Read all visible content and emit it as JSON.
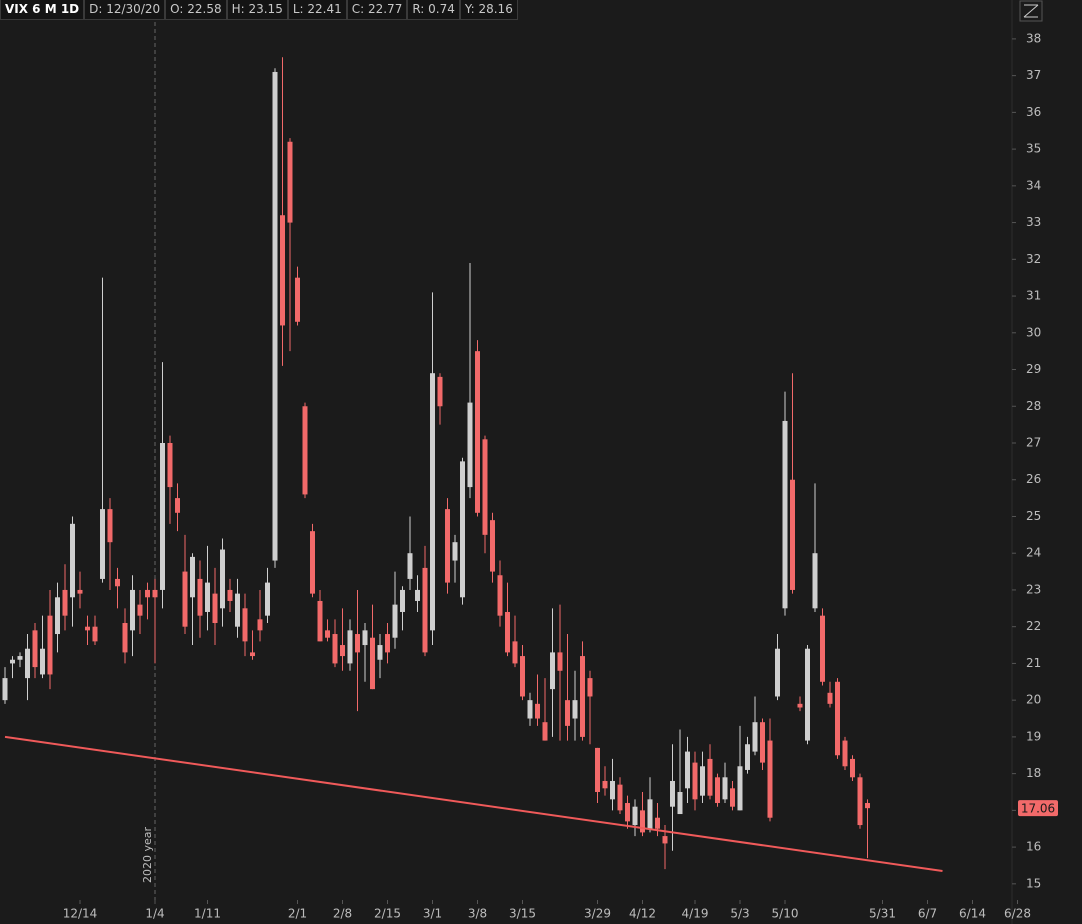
{
  "chart_data": {
    "type": "candlestick",
    "title": "VIX 6 M 1D",
    "readout": [
      "D: 12/30/20",
      "O: 22.58",
      "H: 23.15",
      "L: 22.41",
      "C: 22.77",
      "R: 0.74",
      "Y: 28.16"
    ],
    "annotation": "2020 year",
    "annotation_category": 20,
    "up_color": "#cfcfcf",
    "down_color": "#f26a6a",
    "grid": false,
    "ylim": [
      14.56,
      38.46
    ],
    "yticks": [
      15,
      16,
      17,
      18,
      19,
      20,
      21,
      22,
      23,
      24,
      25,
      26,
      27,
      28,
      29,
      30,
      31,
      32,
      33,
      34,
      35,
      36,
      37,
      38
    ],
    "categories": [
      null,
      null,
      null,
      null,
      null,
      null,
      null,
      null,
      null,
      null,
      "12/14",
      null,
      null,
      null,
      null,
      null,
      null,
      null,
      null,
      null,
      "1/4",
      null,
      null,
      null,
      null,
      null,
      null,
      "1/11",
      null,
      null,
      null,
      null,
      null,
      null,
      null,
      null,
      null,
      null,
      null,
      "2/1",
      null,
      null,
      null,
      null,
      null,
      "2/8",
      null,
      null,
      null,
      null,
      null,
      "2/15",
      null,
      null,
      null,
      null,
      null,
      "3/1",
      null,
      null,
      null,
      null,
      null,
      "3/8",
      null,
      null,
      null,
      null,
      null,
      "3/15",
      null,
      null,
      null,
      null,
      null,
      null,
      null,
      null,
      null,
      "3/29",
      null,
      null,
      null,
      null,
      null,
      "4/12",
      null,
      null,
      null,
      null,
      null,
      null,
      "4/19",
      null,
      null,
      null,
      null,
      null,
      "5/3",
      null,
      null,
      null,
      null,
      null,
      "5/10",
      null,
      null,
      null,
      null,
      null,
      null,
      null,
      null,
      null,
      null,
      null,
      null,
      "5/31",
      null,
      null,
      null,
      null,
      null,
      "6/7",
      null,
      null,
      null,
      null,
      null,
      "6/14",
      null,
      null,
      null,
      null,
      null,
      "6/28"
    ],
    "open": [
      20.0,
      21.0,
      21.1,
      20.6,
      21.9,
      20.7,
      22.3,
      21.8,
      23.0,
      22.8,
      23.0,
      22.0,
      22.0,
      23.3,
      25.2,
      23.3,
      22.1,
      21.9,
      22.6,
      23.0,
      23.0,
      23.0,
      27.0,
      25.5,
      23.5,
      22.8,
      23.3,
      22.4,
      22.9,
      22.5,
      23.0,
      22.0,
      22.5,
      21.3,
      22.2,
      22.3,
      23.8,
      33.2,
      35.2,
      31.5,
      28.0,
      24.6,
      22.7,
      21.9,
      21.8,
      21.5,
      21.0,
      21.8,
      21.5,
      21.7,
      21.1,
      21.8,
      21.7,
      22.4,
      23.3,
      22.7,
      23.6,
      21.9,
      28.8,
      25.2,
      23.8,
      22.8,
      25.8,
      29.5,
      27.1,
      24.9,
      23.4,
      22.4,
      21.6,
      21.2,
      19.5,
      19.9,
      19.4,
      20.3,
      21.3,
      20.0,
      19.5,
      21.2,
      20.6,
      18.7,
      17.8,
      17.3,
      17.7,
      17.2,
      16.6,
      17.0,
      16.5,
      16.8,
      16.3,
      17.1,
      16.9,
      17.6,
      18.3,
      17.4,
      18.4,
      17.9,
      17.3,
      17.6,
      17.0,
      18.1,
      18.6,
      19.4,
      18.9,
      20.1,
      22.5,
      26.0,
      19.9,
      18.9,
      22.5,
      22.3,
      20.2,
      20.5,
      18.9,
      18.4,
      17.9,
      17.2,
      null,
      null,
      null,
      null,
      null,
      null,
      null,
      null,
      null,
      null,
      null,
      null,
      null,
      null,
      null,
      null,
      null,
      null,
      null,
      null
    ],
    "high": [
      20.9,
      21.2,
      21.3,
      21.8,
      22.1,
      22.3,
      23.0,
      23.2,
      23.7,
      25.0,
      23.5,
      22.3,
      22.3,
      31.5,
      25.5,
      23.6,
      22.5,
      23.4,
      23.0,
      23.2,
      23.3,
      29.2,
      27.2,
      25.9,
      24.5,
      24.0,
      23.8,
      24.2,
      23.6,
      24.4,
      23.3,
      23.3,
      22.9,
      21.9,
      23.0,
      23.6,
      37.2,
      37.5,
      35.3,
      31.8,
      28.1,
      24.8,
      23.0,
      22.2,
      22.2,
      22.5,
      22.2,
      23.0,
      22.1,
      22.6,
      21.8,
      22.1,
      23.5,
      23.1,
      25.0,
      23.4,
      24.2,
      31.1,
      28.9,
      25.5,
      24.5,
      26.6,
      31.9,
      29.8,
      27.2,
      25.1,
      23.8,
      23.2,
      22.3,
      21.5,
      20.2,
      20.7,
      20.6,
      22.5,
      22.6,
      21.8,
      20.8,
      21.6,
      20.8,
      18.7,
      18.2,
      18.4,
      17.9,
      17.4,
      17.3,
      17.5,
      17.9,
      17.2,
      16.6,
      18.8,
      19.2,
      19.0,
      18.6,
      18.6,
      18.8,
      18.0,
      18.3,
      17.8,
      19.3,
      19.0,
      20.1,
      19.5,
      19.5,
      21.8,
      28.4,
      28.9,
      20.1,
      21.5,
      25.9,
      22.5,
      20.5,
      20.6,
      19.0,
      18.5,
      18.0,
      17.3,
      null,
      null,
      null,
      null,
      null,
      null,
      null,
      null,
      null,
      null,
      null,
      null,
      null,
      null,
      null,
      null,
      null,
      null,
      null,
      null
    ],
    "low": [
      19.9,
      20.6,
      20.9,
      20.0,
      20.6,
      20.6,
      20.3,
      21.3,
      21.9,
      22.0,
      22.5,
      21.5,
      21.5,
      23.2,
      23.0,
      22.5,
      21.0,
      21.2,
      21.8,
      22.2,
      21.0,
      22.5,
      24.8,
      24.6,
      21.8,
      21.5,
      21.7,
      21.9,
      21.5,
      22.0,
      22.4,
      21.7,
      21.2,
      21.1,
      21.6,
      22.1,
      23.6,
      29.1,
      29.5,
      30.2,
      25.5,
      22.8,
      21.6,
      21.6,
      20.9,
      20.8,
      20.8,
      19.7,
      20.5,
      20.3,
      20.6,
      21.0,
      21.4,
      21.9,
      23.0,
      22.4,
      21.2,
      21.5,
      27.5,
      22.9,
      23.2,
      22.6,
      25.5,
      25.0,
      24.0,
      23.2,
      22.0,
      21.2,
      20.9,
      20.0,
      19.3,
      19.3,
      18.9,
      19.0,
      18.9,
      18.9,
      18.9,
      18.9,
      18.8,
      17.2,
      17.4,
      17.0,
      16.9,
      16.5,
      16.3,
      16.3,
      16.4,
      16.3,
      15.4,
      15.9,
      16.9,
      17.2,
      17.0,
      17.2,
      17.3,
      17.1,
      17.2,
      17.0,
      17.0,
      18.0,
      18.5,
      18.1,
      16.7,
      20.0,
      22.3,
      22.9,
      19.7,
      18.8,
      22.4,
      20.4,
      19.8,
      18.4,
      18.1,
      17.8,
      16.5,
      15.7,
      null,
      null,
      null,
      null,
      null,
      null,
      null,
      null,
      null,
      null,
      null,
      null,
      null,
      null,
      null,
      null,
      null,
      null,
      null,
      null
    ],
    "close": [
      20.6,
      21.1,
      21.2,
      21.4,
      20.9,
      21.4,
      20.7,
      22.8,
      22.3,
      24.8,
      22.9,
      21.9,
      21.6,
      25.2,
      24.3,
      23.1,
      21.3,
      23.0,
      22.3,
      22.8,
      22.8,
      27.0,
      25.8,
      25.1,
      22.0,
      23.9,
      22.3,
      23.2,
      22.1,
      24.1,
      22.7,
      22.9,
      21.6,
      21.2,
      21.9,
      23.2,
      37.1,
      30.2,
      33.0,
      30.3,
      25.6,
      22.9,
      21.6,
      21.7,
      21.0,
      21.2,
      21.9,
      21.3,
      21.9,
      20.3,
      21.5,
      21.3,
      22.6,
      23.0,
      24.0,
      23.0,
      21.3,
      28.9,
      28.0,
      23.2,
      24.3,
      26.5,
      28.1,
      25.1,
      24.5,
      23.5,
      22.3,
      21.3,
      21.0,
      20.1,
      20.0,
      19.5,
      18.9,
      21.3,
      20.8,
      19.3,
      20.0,
      19.0,
      20.1,
      17.5,
      17.6,
      17.8,
      17.0,
      16.7,
      17.1,
      16.4,
      17.3,
      16.5,
      16.1,
      17.8,
      17.5,
      18.6,
      17.3,
      18.2,
      17.4,
      17.2,
      17.9,
      17.1,
      18.2,
      18.8,
      19.4,
      18.3,
      16.8,
      21.4,
      27.6,
      23.0,
      19.8,
      21.4,
      24.0,
      20.5,
      19.9,
      18.5,
      18.2,
      17.9,
      16.6,
      17.06,
      null,
      null,
      null,
      null,
      null,
      null,
      null,
      null,
      null,
      null,
      null,
      null,
      null,
      null,
      null,
      null,
      null,
      null,
      null,
      null
    ],
    "last_price": 17.06,
    "trendline": {
      "color": "#f05a5a",
      "x": [
        0,
        125
      ],
      "values": [
        19.0,
        15.35
      ]
    }
  }
}
